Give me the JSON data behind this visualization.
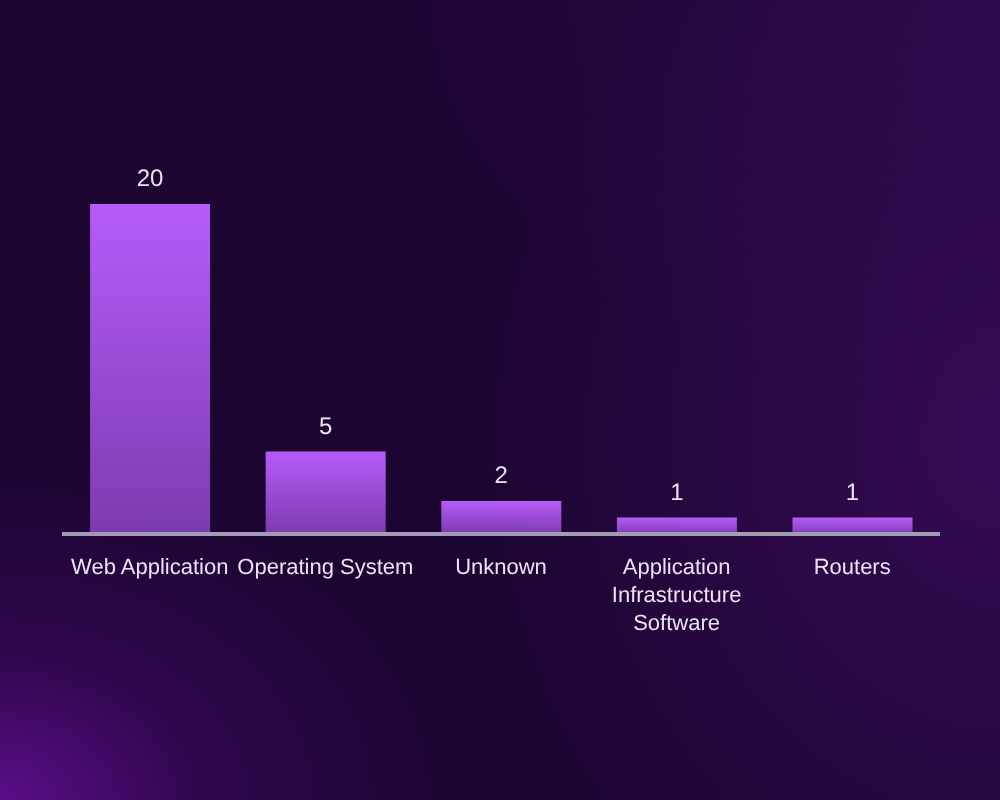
{
  "chart_data": {
    "type": "bar",
    "categories": [
      "Web Application",
      "Operating System",
      "Unknown",
      "Application Infrastructure Software",
      "Routers"
    ],
    "values": [
      20,
      5,
      2,
      1,
      1
    ],
    "color": "#b65cfa",
    "data_labels": true
  }
}
